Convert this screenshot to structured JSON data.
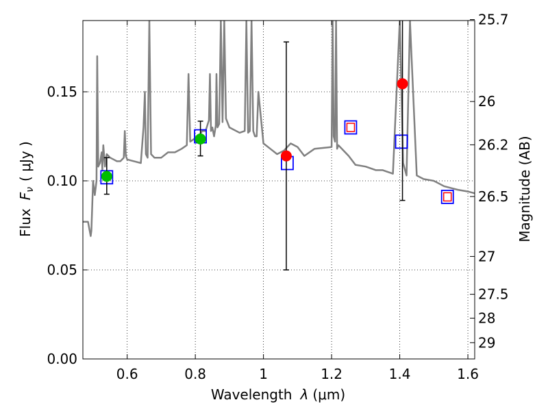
{
  "chart_data": {
    "type": "scatter",
    "title": "",
    "xlabel_prefix": "Wavelength",
    "xlabel_symbol": "λ",
    "xlabel_unit": "(μm)",
    "ylabel_prefix": "Flux",
    "ylabel_symbol": "F",
    "ylabel_subscript": "ν",
    "ylabel_unit": "( μJy )",
    "y2label": "Magnitude (AB)",
    "xlim": [
      0.47,
      1.62
    ],
    "ylim": [
      0.0,
      0.19
    ],
    "grid": true,
    "grid_style": "dotted",
    "x_ticks": [
      {
        "value": 0.6,
        "label": "0.6"
      },
      {
        "value": 0.8,
        "label": "0.8"
      },
      {
        "value": 1.0,
        "label": "1"
      },
      {
        "value": 1.2,
        "label": "1.2"
      },
      {
        "value": 1.4,
        "label": "1.4"
      },
      {
        "value": 1.6,
        "label": "1.6"
      }
    ],
    "y_ticks": [
      {
        "value": 0.0,
        "label": "0.00"
      },
      {
        "value": 0.05,
        "label": "0.05"
      },
      {
        "value": 0.1,
        "label": "0.10"
      },
      {
        "value": 0.15,
        "label": "0.15"
      }
    ],
    "y2_ticks": [
      {
        "value": 25.7,
        "label": "25.7"
      },
      {
        "value": 26.0,
        "label": "26"
      },
      {
        "value": 26.2,
        "label": "26.2"
      },
      {
        "value": 26.5,
        "label": "26.5"
      },
      {
        "value": 27.0,
        "label": "27"
      },
      {
        "value": 27.5,
        "label": "27.5"
      },
      {
        "value": 28.0,
        "label": "28"
      },
      {
        "value": 29.0,
        "label": "29"
      }
    ],
    "colors": {
      "template_line": "#808080",
      "model_box": "#0000ff",
      "upper_limit_box": "#ff0000",
      "detection": "#00bf00",
      "marginal": "#ff0000",
      "errorbar": "#000000"
    },
    "template_spectrum": {
      "x": [
        0.47,
        0.485,
        0.49,
        0.493,
        0.495,
        0.5,
        0.505,
        0.51,
        0.512,
        0.515,
        0.52,
        0.525,
        0.527,
        0.53,
        0.535,
        0.54,
        0.55,
        0.56,
        0.57,
        0.58,
        0.59,
        0.593,
        0.596,
        0.6,
        0.62,
        0.64,
        0.648,
        0.652,
        0.655,
        0.66,
        0.665,
        0.67,
        0.68,
        0.7,
        0.72,
        0.74,
        0.76,
        0.775,
        0.78,
        0.785,
        0.8,
        0.81,
        0.82,
        0.83,
        0.84,
        0.843,
        0.846,
        0.85,
        0.855,
        0.86,
        0.862,
        0.865,
        0.87,
        0.875,
        0.88,
        0.885,
        0.89,
        0.9,
        0.91,
        0.93,
        0.945,
        0.95,
        0.955,
        0.96,
        0.965,
        0.97,
        0.975,
        0.98,
        0.985,
        1.0,
        1.02,
        1.04,
        1.06,
        1.08,
        1.1,
        1.12,
        1.15,
        1.2,
        1.203,
        1.206,
        1.21,
        1.213,
        1.216,
        1.22,
        1.25,
        1.27,
        1.3,
        1.33,
        1.35,
        1.38,
        1.4,
        1.41,
        1.42,
        1.43,
        1.45,
        1.47,
        1.5,
        1.53,
        1.55,
        1.57,
        1.6,
        1.62
      ],
      "y": [
        0.077,
        0.077,
        0.072,
        0.069,
        0.072,
        0.1,
        0.092,
        0.1,
        0.17,
        0.108,
        0.11,
        0.116,
        0.106,
        0.12,
        0.108,
        0.115,
        0.113,
        0.112,
        0.111,
        0.111,
        0.113,
        0.128,
        0.114,
        0.112,
        0.111,
        0.11,
        0.13,
        0.15,
        0.115,
        0.113,
        0.19,
        0.115,
        0.113,
        0.113,
        0.116,
        0.116,
        0.118,
        0.12,
        0.16,
        0.122,
        0.124,
        0.125,
        0.128,
        0.128,
        0.134,
        0.16,
        0.128,
        0.13,
        0.125,
        0.131,
        0.16,
        0.13,
        0.132,
        0.19,
        0.133,
        0.19,
        0.135,
        0.13,
        0.129,
        0.127,
        0.128,
        0.19,
        0.127,
        0.128,
        0.19,
        0.128,
        0.125,
        0.125,
        0.15,
        0.121,
        0.118,
        0.115,
        0.117,
        0.121,
        0.119,
        0.114,
        0.118,
        0.119,
        0.19,
        0.125,
        0.122,
        0.19,
        0.118,
        0.12,
        0.114,
        0.109,
        0.108,
        0.106,
        0.106,
        0.104,
        0.19,
        0.11,
        0.103,
        0.19,
        0.103,
        0.101,
        0.1,
        0.097,
        0.096,
        0.095,
        0.094,
        0.093
      ]
    },
    "model_boxes": [
      {
        "x": 0.54,
        "y": 0.102
      },
      {
        "x": 0.815,
        "y": 0.125
      },
      {
        "x": 1.07,
        "y": 0.11
      },
      {
        "x": 1.256,
        "y": 0.13
      },
      {
        "x": 1.405,
        "y": 0.122
      },
      {
        "x": 1.54,
        "y": 0.091
      }
    ],
    "upper_limit_boxes": [
      {
        "x": 1.256,
        "y": 0.13
      },
      {
        "x": 1.54,
        "y": 0.091
      }
    ],
    "series": [
      {
        "color": "#00bf00",
        "points": [
          {
            "x": 0.54,
            "y": 0.1025,
            "err_low": 0.0925,
            "err_high": 0.113
          },
          {
            "x": 0.815,
            "y": 0.1235,
            "err_low": 0.114,
            "err_high": 0.1335
          }
        ]
      },
      {
        "color": "#ff0000",
        "points": [
          {
            "x": 1.067,
            "y": 0.114,
            "err_low": 0.05,
            "err_high": 0.178
          },
          {
            "x": 1.408,
            "y": 0.1545,
            "err_low": 0.089,
            "err_high": 0.194
          }
        ]
      }
    ]
  }
}
